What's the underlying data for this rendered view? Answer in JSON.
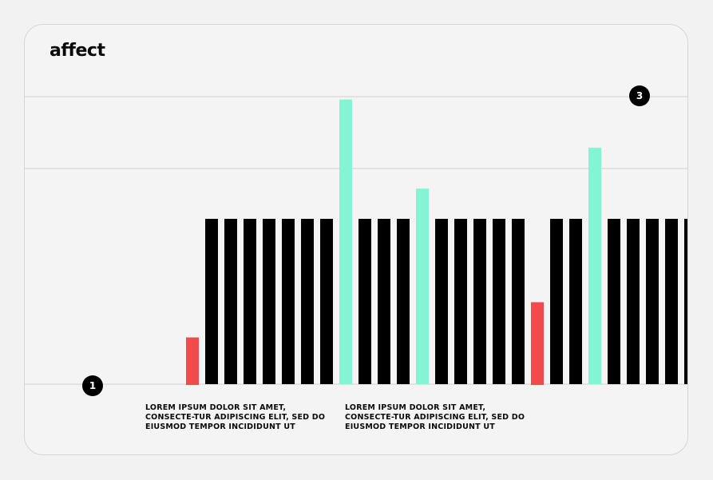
{
  "brand": {
    "logo_text": "affect"
  },
  "markers": [
    {
      "label": "1"
    },
    {
      "label": "3"
    }
  ],
  "notes": [
    {
      "text": "LOREM IPSUM DOLOR SIT AMET, CONSECTE-TUR ADIPISCING ELIT, SED DO EIUSMOD TEMPOR INCIDIDUNT UT"
    },
    {
      "text": "LOREM IPSUM DOLOR SIT AMET, CONSECTE-TUR ADIPISCING ELIT, SED DO EIUSMOD TEMPOR INCIDIDUNT UT"
    }
  ],
  "colors": {
    "base": "#000000",
    "highlight": "#84f4d4",
    "alert": "#ef4a4c",
    "grid": "#dcdcdc"
  },
  "chart_data": {
    "type": "bar",
    "title": "",
    "xlabel": "",
    "ylabel": "",
    "ylim": [
      0,
      4
    ],
    "grid": true,
    "gridlines": [
      0,
      3,
      4
    ],
    "values": [
      0,
      0,
      0,
      0,
      0,
      0.65,
      2.3,
      2.3,
      2.3,
      2.3,
      2.3,
      2.3,
      2.3,
      3.96,
      2.3,
      2.3,
      2.3,
      2.72,
      2.3,
      2.3,
      2.3,
      2.3,
      2.3,
      1.14,
      2.3,
      2.3,
      3.29,
      2.3,
      2.3,
      2.3,
      2.3,
      2.3,
      2.3
    ],
    "bar_colors": [
      "base",
      "base",
      "base",
      "base",
      "base",
      "alert",
      "base",
      "base",
      "base",
      "base",
      "base",
      "base",
      "base",
      "highlight",
      "base",
      "base",
      "base",
      "highlight",
      "base",
      "base",
      "base",
      "base",
      "base",
      "alert",
      "base",
      "base",
      "highlight",
      "base",
      "base",
      "base",
      "base",
      "base",
      "base"
    ]
  }
}
